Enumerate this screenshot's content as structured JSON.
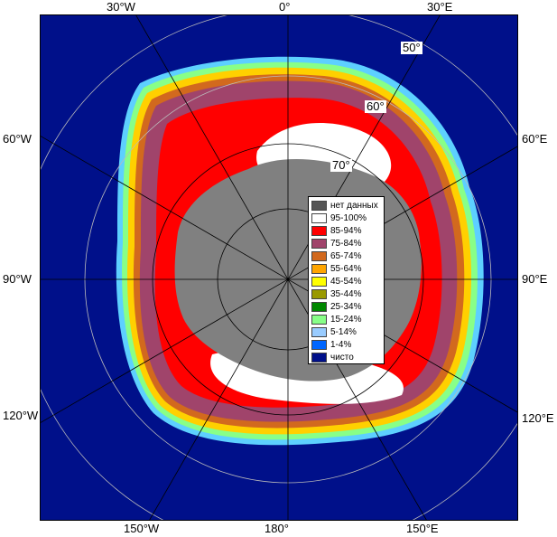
{
  "axis_labels": {
    "top": [
      "30°W",
      "0°",
      "30°E"
    ],
    "left": [
      "60°W",
      "90°W",
      "120°W"
    ],
    "right": [
      "60°E",
      "90°E",
      "120°E"
    ],
    "bottom": [
      "150°W",
      "180°",
      "150°E"
    ]
  },
  "latitude_labels": [
    "50°",
    "60°",
    "70°"
  ],
  "legend": [
    {
      "label": "нет данных",
      "color": "#555555"
    },
    {
      "label": "95-100%",
      "color": "#ffffff"
    },
    {
      "label": "85-94%",
      "color": "#ff0000"
    },
    {
      "label": "75-84%",
      "color": "#a0446b"
    },
    {
      "label": "65-74%",
      "color": "#d2691e"
    },
    {
      "label": "55-64%",
      "color": "#ffa500"
    },
    {
      "label": "45-54%",
      "color": "#ffff00"
    },
    {
      "label": "35-44%",
      "color": "#999900"
    },
    {
      "label": "25-34%",
      "color": "#008800"
    },
    {
      "label": "15-24%",
      "color": "#88ff88"
    },
    {
      "label": "5-14%",
      "color": "#99ccff"
    },
    {
      "label": "1-4%",
      "color": "#0066ff"
    },
    {
      "label": "чисто",
      "color": "#00108a"
    }
  ]
}
